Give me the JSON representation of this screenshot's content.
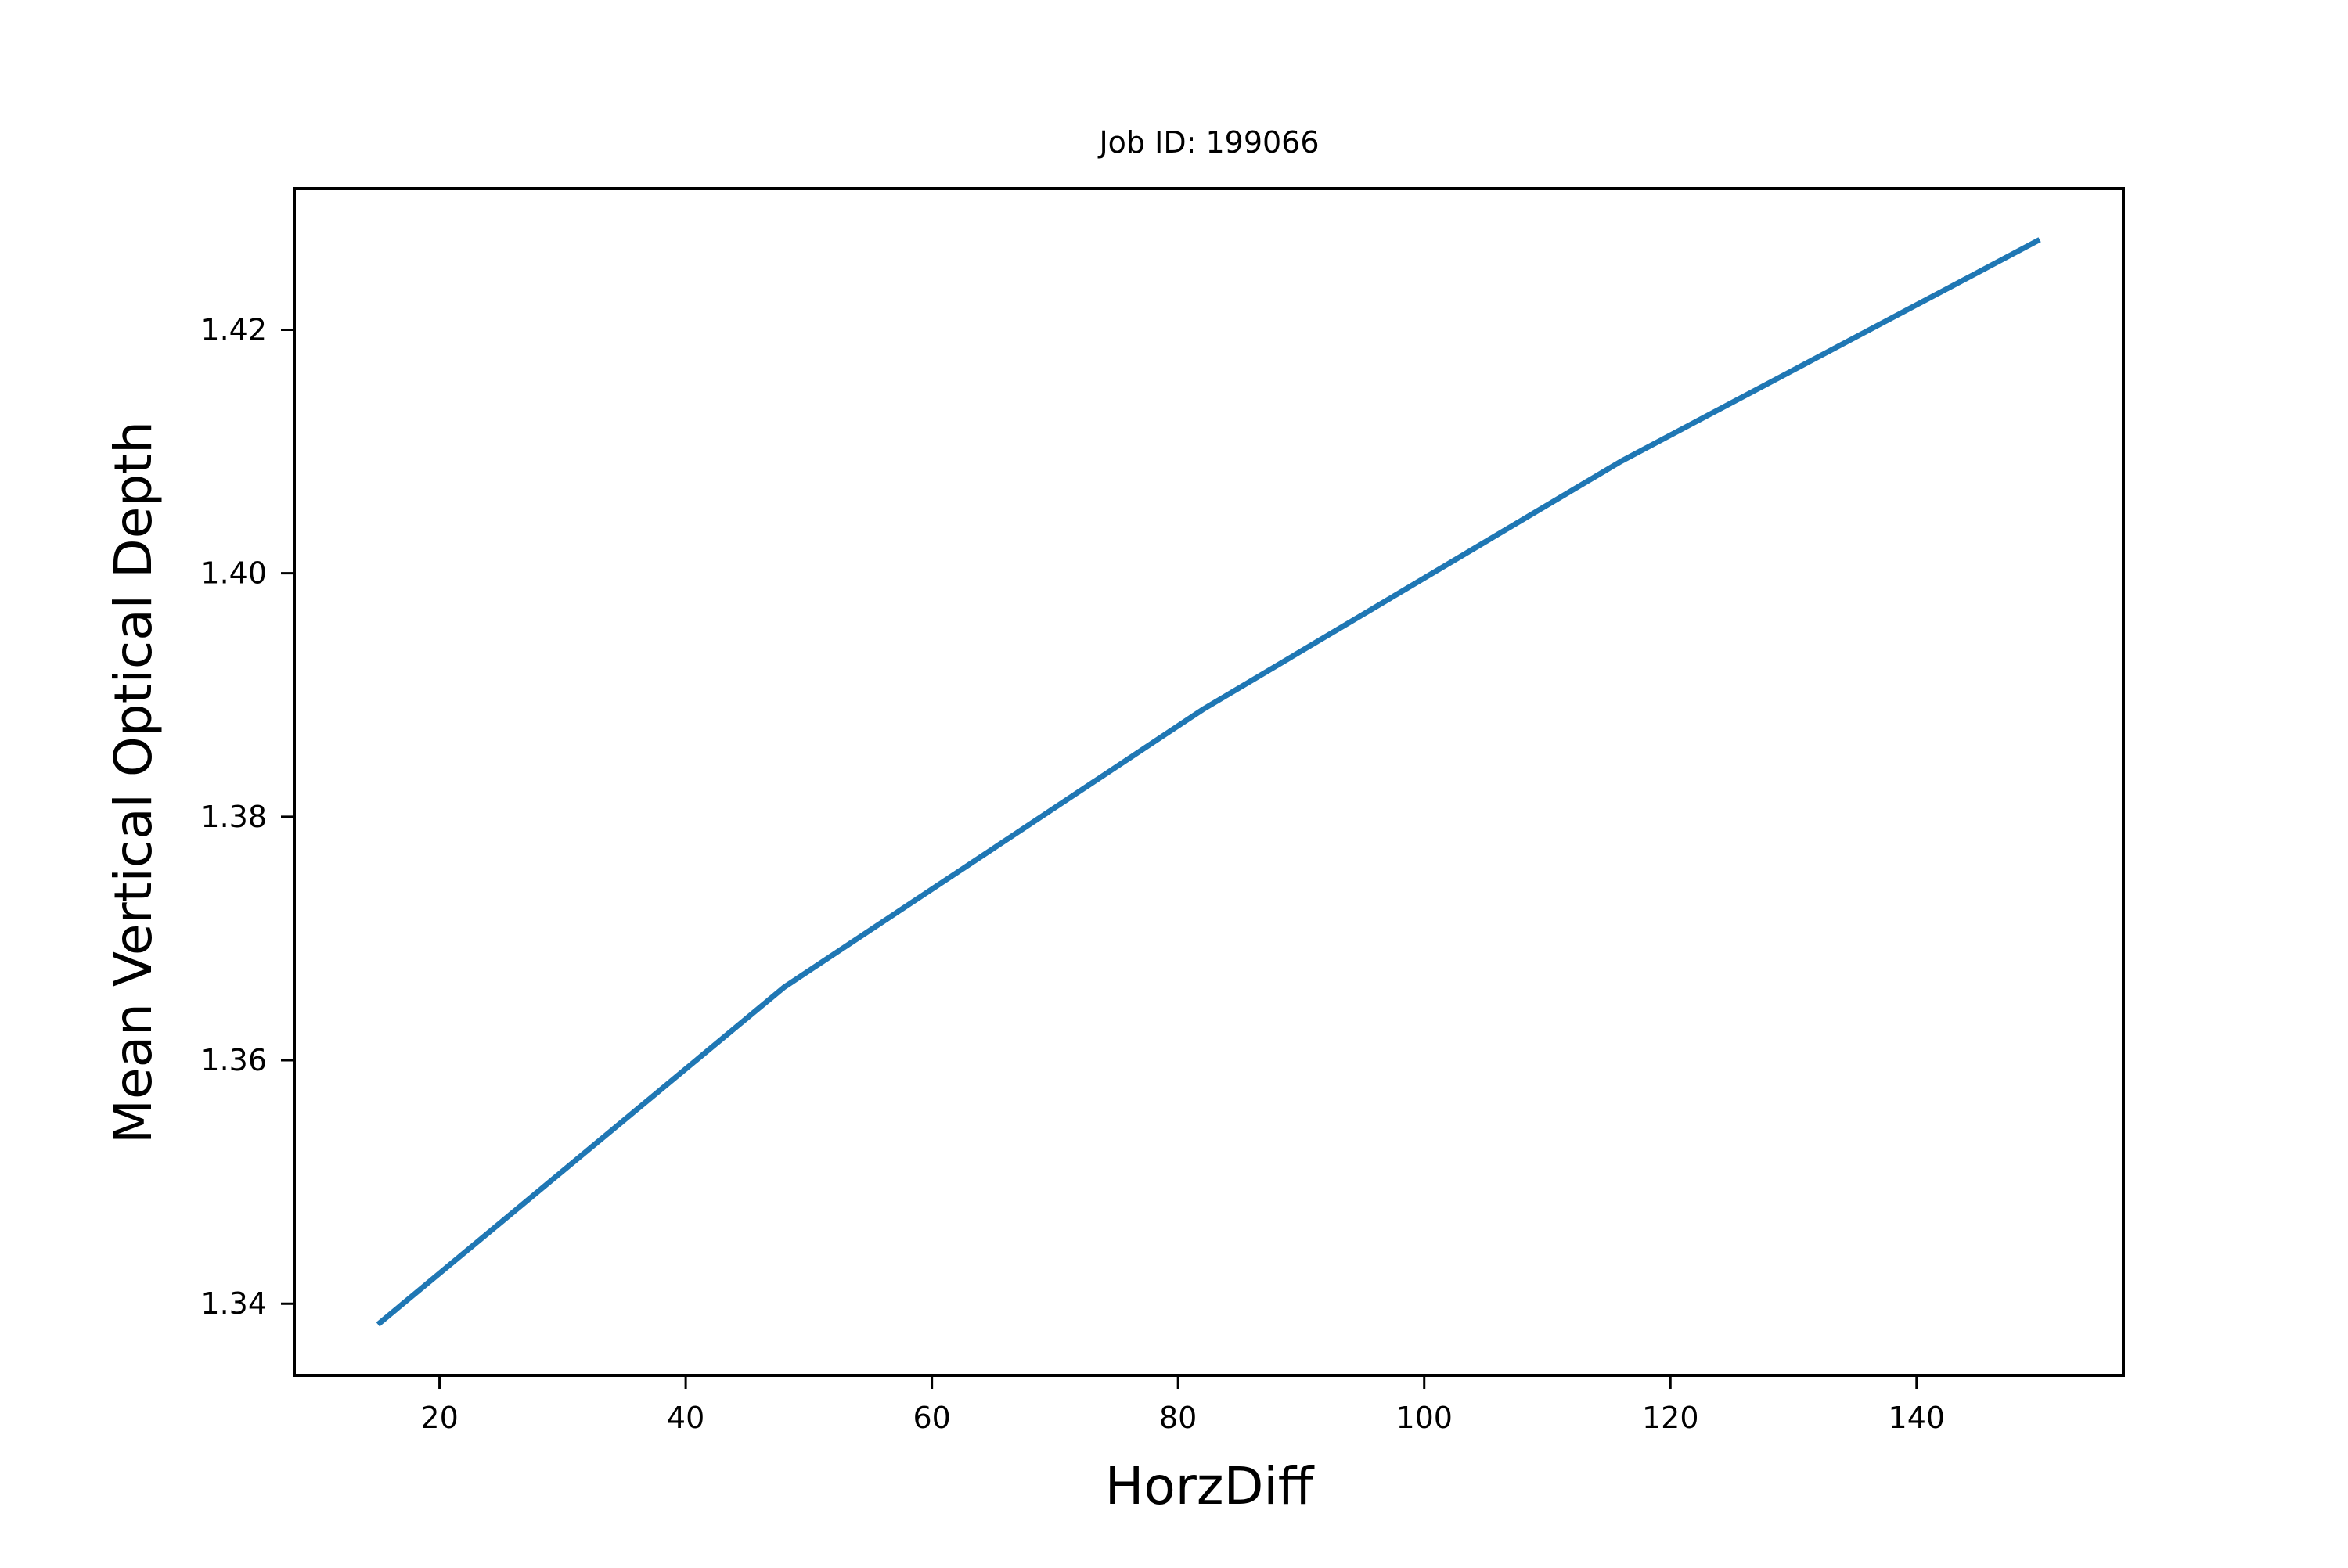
{
  "chart_data": {
    "type": "line",
    "title": "Job ID: 199066",
    "xlabel": "HorzDiff",
    "ylabel": "Mean Vertical Optical Depth",
    "xlim": [
      8.2,
      156.8
    ],
    "ylim": [
      1.3341,
      1.4316
    ],
    "x_ticks": [
      20,
      40,
      60,
      80,
      100,
      120,
      140
    ],
    "x_tick_labels": [
      "20",
      "40",
      "60",
      "80",
      "100",
      "120",
      "140"
    ],
    "y_ticks": [
      1.34,
      1.36,
      1.38,
      1.4,
      1.42
    ],
    "y_tick_labels": [
      "1.34",
      "1.36",
      "1.38",
      "1.40",
      "1.42"
    ],
    "grid": false,
    "series": [
      {
        "color": "#1f77b4",
        "x": [
          15,
          48,
          82,
          116,
          150
        ],
        "y": [
          1.3383,
          1.366,
          1.3888,
          1.4092,
          1.4274
        ]
      }
    ]
  }
}
